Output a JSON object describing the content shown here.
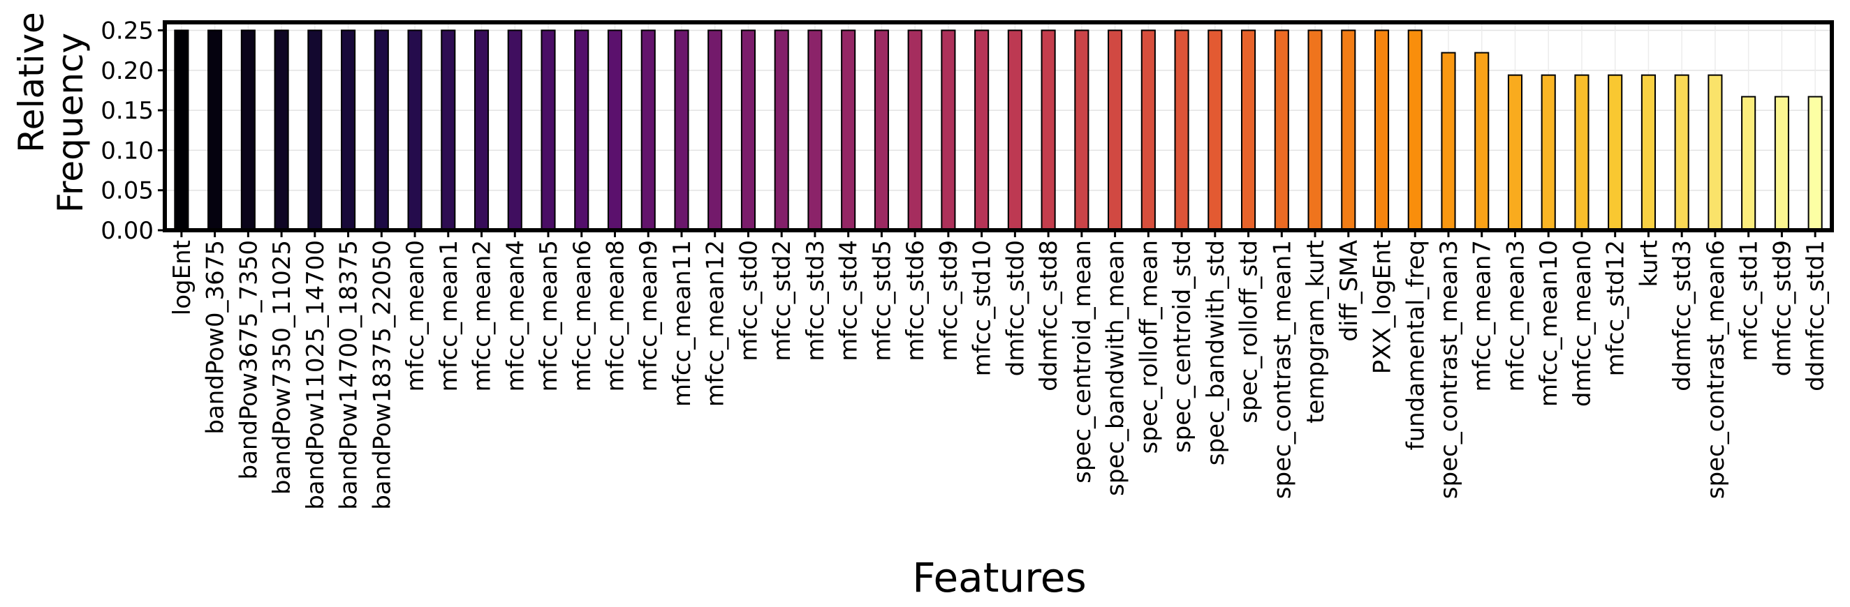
{
  "chart_data": {
    "type": "bar",
    "title": "",
    "xlabel": "Features",
    "ylabel_lines": [
      "Relative",
      "Frequency"
    ],
    "ylim": [
      0,
      0.26
    ],
    "yticks": [
      0.0,
      0.05,
      0.1,
      0.15,
      0.2,
      0.25
    ],
    "ytick_labels": [
      "0.00",
      "0.05",
      "0.10",
      "0.15",
      "0.20",
      "0.25"
    ],
    "grid": true,
    "legend": "none",
    "colormap": "inferno",
    "categories": [
      "logEnt",
      "bandPow0_3675",
      "bandPow3675_7350",
      "bandPow7350_11025",
      "bandPow11025_14700",
      "bandPow14700_18375",
      "bandPow18375_22050",
      "mfcc_mean0",
      "mfcc_mean1",
      "mfcc_mean2",
      "mfcc_mean4",
      "mfcc_mean5",
      "mfcc_mean6",
      "mfcc_mean8",
      "mfcc_mean9",
      "mfcc_mean11",
      "mfcc_mean12",
      "mfcc_std0",
      "mfcc_std2",
      "mfcc_std3",
      "mfcc_std4",
      "mfcc_std5",
      "mfcc_std6",
      "mfcc_std9",
      "mfcc_std10",
      "dmfcc_std0",
      "ddmfcc_std8",
      "spec_centroid_mean",
      "spec_bandwith_mean",
      "spec_rolloff_mean",
      "spec_centroid_std",
      "spec_bandwith_std",
      "spec_rolloff_std",
      "spec_contrast_mean1",
      "tempgram_kurt",
      "diff_SMA",
      "PXX_logEnt",
      "fundamental_freq",
      "spec_contrast_mean3",
      "mfcc_mean7",
      "mfcc_mean3",
      "mfcc_mean10",
      "dmfcc_mean0",
      "mfcc_std12",
      "kurt",
      "ddmfcc_std3",
      "spec_contrast_mean6",
      "mfcc_std1",
      "dmfcc_std9",
      "ddmfcc_std1"
    ],
    "values": [
      0.25,
      0.25,
      0.25,
      0.25,
      0.25,
      0.25,
      0.25,
      0.25,
      0.25,
      0.25,
      0.25,
      0.25,
      0.25,
      0.25,
      0.25,
      0.25,
      0.25,
      0.25,
      0.25,
      0.25,
      0.25,
      0.25,
      0.25,
      0.25,
      0.25,
      0.25,
      0.25,
      0.25,
      0.25,
      0.25,
      0.25,
      0.25,
      0.25,
      0.25,
      0.25,
      0.25,
      0.25,
      0.25,
      0.222,
      0.222,
      0.194,
      0.194,
      0.194,
      0.194,
      0.194,
      0.194,
      0.194,
      0.167,
      0.167,
      0.167
    ]
  }
}
